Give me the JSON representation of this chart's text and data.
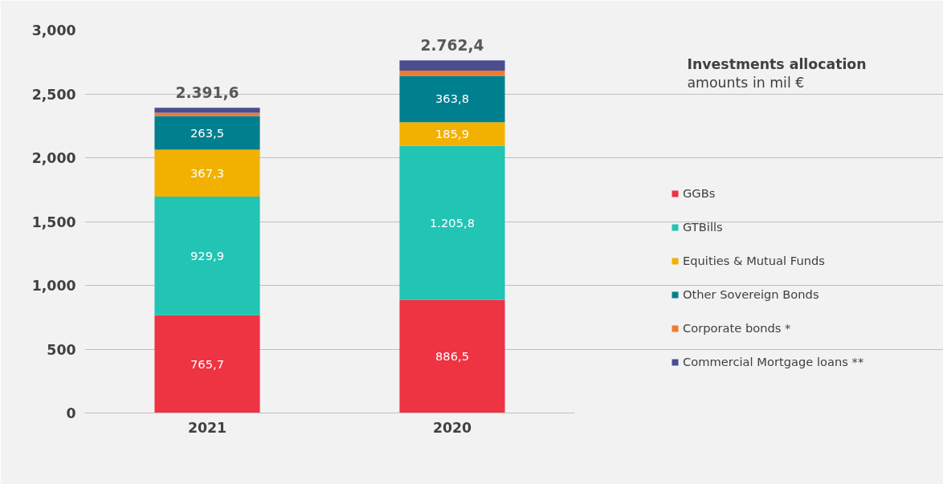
{
  "chart_data": {
    "type": "bar",
    "stacked": true,
    "title": "Investments allocation",
    "subtitle": "amounts in mil €",
    "categories": [
      "2021",
      "2020"
    ],
    "series": [
      {
        "name": "GGBs",
        "color": "#ee3342",
        "values": [
          765.7,
          886.5
        ],
        "value_labels": [
          "765,7",
          "886,5"
        ]
      },
      {
        "name": "GTBills",
        "color": "#22c4b4",
        "values": [
          929.9,
          1205.8
        ],
        "value_labels": [
          "929,9",
          "1.205,8"
        ]
      },
      {
        "name": "Equities & Mutual Funds",
        "color": "#f2b100",
        "values": [
          367.3,
          185.9
        ],
        "value_labels": [
          "367,3",
          "185,9"
        ]
      },
      {
        "name": "Other Sovereign Bonds",
        "color": "#00808f",
        "values": [
          263.5,
          363.8
        ],
        "value_labels": [
          "263,5",
          "363,8"
        ]
      },
      {
        "name": "Corporate bonds *",
        "color": "#ee7b30",
        "values": [
          25.2,
          41
        ]
      },
      {
        "name": "Commercial Mortgage loans **",
        "color": "#4a4e91",
        "values": [
          40,
          79.4
        ]
      }
    ],
    "totals": [
      "2.391,6",
      "2.762,4"
    ],
    "ylim": [
      0,
      3000
    ],
    "yticks": [
      0,
      500,
      {
        "value": 1000,
        "label": "1,000"
      },
      {
        "value": 1500,
        "label": "1,500"
      },
      {
        "value": 2000,
        "label": "2,000"
      },
      {
        "value": 2500,
        "label": "2,500"
      },
      {
        "value": 3000,
        "label": "3,000"
      }
    ],
    "grid": "y",
    "legend": "right"
  }
}
